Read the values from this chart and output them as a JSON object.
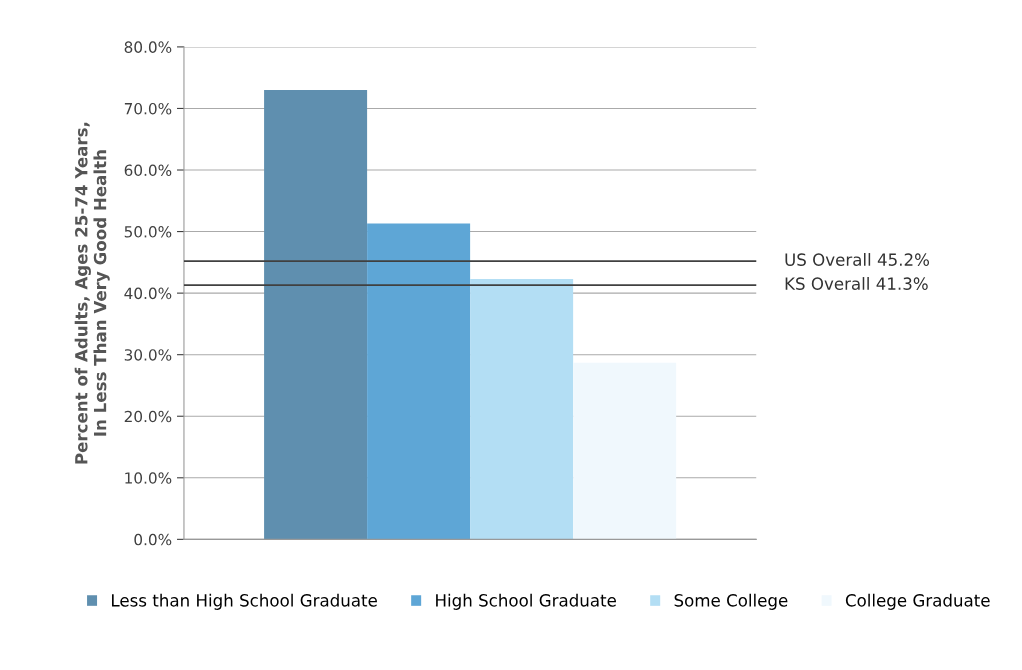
{
  "chart_data": {
    "type": "bar",
    "ylabel": "Percent of Adults, Ages 25-74 Years,\nIn Less Than Very Good Health",
    "categories": [
      null
    ],
    "series": [
      {
        "name": "Less than High School Graduate",
        "color": "#5f8faf",
        "values": [
          73.0
        ]
      },
      {
        "name": "High School Graduate",
        "color": "#5ea6d6",
        "values": [
          51.3
        ]
      },
      {
        "name": "Some College",
        "color": "#b3def4",
        "values": [
          42.3
        ]
      },
      {
        "name": "College Graduate",
        "color": "#f0f8fd",
        "values": [
          28.7
        ]
      }
    ],
    "ylim": [
      0,
      80
    ],
    "yticks": [
      {
        "value": 0,
        "label": "0.0%"
      },
      {
        "value": 10,
        "label": "10.0%"
      },
      {
        "value": 20,
        "label": "20.0%"
      },
      {
        "value": 30,
        "label": "30.0%"
      },
      {
        "value": 40,
        "label": "40.0%"
      },
      {
        "value": 50,
        "label": "50.0%"
      },
      {
        "value": 60,
        "label": "60.0%"
      },
      {
        "value": 70,
        "label": "70.0%"
      },
      {
        "value": 80,
        "label": "80.0%"
      }
    ],
    "ref_lines": [
      {
        "axis": "y",
        "value": 45.2,
        "label": "US Overall 45.2%",
        "color": "#404040"
      },
      {
        "axis": "y",
        "value": 41.3,
        "label": "KS Overall 41.3%",
        "color": "#404040"
      }
    ],
    "grid": "y",
    "legend": "bottom"
  }
}
